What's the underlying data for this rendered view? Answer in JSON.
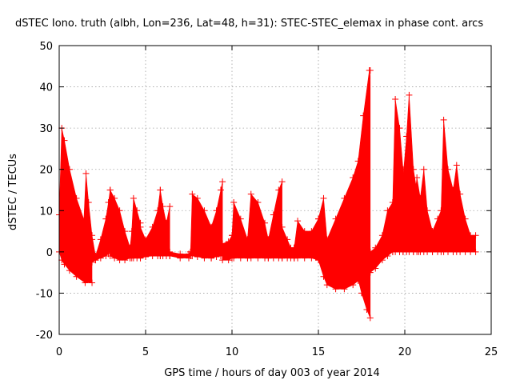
{
  "chart_data": {
    "type": "line",
    "title": "dSTEC Iono. truth (albh, Lon=236, Lat=48, h=31): STEC-STEC_elemax in phase cont. arcs",
    "xlabel": "GPS time / hours of day 003 of year 2014",
    "ylabel": "dSTEC  / TECUs",
    "xlim": [
      0,
      25
    ],
    "ylim": [
      -20,
      50
    ],
    "x_ticks": [
      0,
      5,
      10,
      15,
      20,
      25
    ],
    "y_ticks": [
      -20,
      -10,
      0,
      10,
      20,
      30,
      40,
      50
    ],
    "grid": true,
    "legend": "none",
    "marker": "plus",
    "series": [
      {
        "color": "#ff0000",
        "arcs": [
          {
            "x": [
              0.0,
              0.15,
              0.3,
              0.6,
              1.0,
              1.5,
              1.9
            ],
            "upper": [
              9,
              30,
              27,
              20,
              13,
              7,
              3
            ],
            "lower": [
              0,
              -2,
              -3,
              -4.5,
              -6,
              -7.5,
              -7.5
            ]
          },
          {
            "x": [
              1.4,
              1.55,
              1.7,
              1.9,
              2.1
            ],
            "upper": [
              5,
              19,
              12,
              4,
              -1
            ],
            "lower": [
              -3,
              -3,
              -3,
              -2.5,
              -2
            ]
          },
          {
            "x": [
              2.1,
              2.4,
              2.7,
              2.85,
              2.95
            ],
            "upper": [
              -1,
              3,
              8,
              12,
              15
            ],
            "lower": [
              -2,
              -1.5,
              -1,
              -0.5,
              0
            ]
          },
          {
            "x": [
              2.95,
              3.2,
              3.5,
              3.8,
              4.1
            ],
            "upper": [
              15,
              13,
              10,
              5,
              1
            ],
            "lower": [
              -1,
              -1.5,
              -2,
              -2,
              -1.5
            ]
          },
          {
            "x": [
              4.1,
              4.2,
              4.3,
              4.5,
              4.7
            ],
            "upper": [
              1,
              5,
              13,
              10,
              7
            ],
            "lower": [
              -1.5,
              -1.5,
              -1.5,
              -1.5,
              -1.5
            ]
          },
          {
            "x": [
              4.7,
              5.0,
              5.4,
              5.7,
              5.85
            ],
            "upper": [
              6,
              3,
              6,
              10,
              15
            ],
            "lower": [
              -1.5,
              -1.2,
              -1,
              -1,
              -1
            ]
          },
          {
            "x": [
              5.85,
              6.0,
              6.2,
              6.4
            ],
            "upper": [
              15,
              11,
              7,
              11
            ],
            "lower": [
              -1,
              -1,
              -1,
              -1
            ]
          },
          {
            "x": [
              6.4,
              7.0,
              7.5,
              7.6
            ],
            "upper": [
              0,
              -0.5,
              -0.5,
              0
            ],
            "lower": [
              -1,
              -1.5,
              -1.5,
              -1
            ]
          },
          {
            "x": [
              7.6,
              7.7,
              8.0,
              8.4,
              8.8
            ],
            "upper": [
              0,
              14,
              13,
              10,
              6
            ],
            "lower": [
              -1,
              -1,
              -1.2,
              -1.5,
              -1.5
            ]
          },
          {
            "x": [
              8.8,
              9.1,
              9.35,
              9.45
            ],
            "upper": [
              6,
              10,
              15,
              17
            ],
            "lower": [
              -1.5,
              -1.2,
              -1,
              -1
            ]
          },
          {
            "x": [
              9.45,
              9.8,
              10.0
            ],
            "upper": [
              2,
              2.5,
              4
            ],
            "lower": [
              -2,
              -2,
              -1.5
            ]
          },
          {
            "x": [
              10.0,
              10.1,
              10.5,
              10.9
            ],
            "upper": [
              4,
              12,
              8,
              3
            ],
            "lower": [
              -1.5,
              -1.5,
              -1.5,
              -1.5
            ]
          },
          {
            "x": [
              10.9,
              11.1,
              11.5,
              11.9,
              12.1
            ],
            "upper": [
              3,
              14,
              12,
              7,
              3
            ],
            "lower": [
              -1.5,
              -1.5,
              -1.5,
              -1.5,
              -1.5
            ]
          },
          {
            "x": [
              12.1,
              12.4,
              12.7,
              12.9
            ],
            "upper": [
              3,
              9,
              15,
              17
            ],
            "lower": [
              -1.5,
              -1.5,
              -1.5,
              -1.5
            ]
          },
          {
            "x": [
              12.9,
              13.2,
              13.4,
              13.6
            ],
            "upper": [
              6,
              3,
              1,
              1
            ],
            "lower": [
              -1.5,
              -1.5,
              -1.5,
              -1.5
            ]
          },
          {
            "x": [
              13.6,
              13.8,
              14.2,
              14.6,
              15.0
            ],
            "upper": [
              1,
              7.5,
              5,
              5,
              8
            ],
            "lower": [
              -1.5,
              -1.5,
              -1.5,
              -1.5,
              -2
            ]
          },
          {
            "x": [
              15.0,
              15.3,
              15.5,
              16.0,
              16.5,
              17.0,
              17.3,
              17.6,
              17.95,
              18.0
            ],
            "upper": [
              8,
              13,
              3,
              8,
              13,
              18,
              22,
              33,
              44,
              0
            ],
            "lower": [
              -2,
              -6,
              -8,
              -9,
              -9,
              -8,
              -7,
              -6,
              -5,
              -3
            ]
          },
          {
            "x": [
              16.4,
              16.8,
              17.2,
              17.5,
              17.8,
              18.0
            ],
            "upper": [
              5,
              11,
              17,
              22,
              30,
              44
            ],
            "lower": [
              -2,
              -3,
              -5,
              -10,
              -14,
              -16
            ]
          },
          {
            "x": [
              18.0,
              18.3,
              18.7,
              19.0,
              19.3
            ],
            "upper": [
              0,
              1,
              4,
              10,
              12
            ],
            "lower": [
              -5,
              -4,
              -2,
              -1,
              0
            ]
          },
          {
            "x": [
              19.3,
              19.45,
              19.7,
              19.9
            ],
            "upper": [
              12,
              37,
              30,
              20
            ],
            "lower": [
              0,
              0,
              0,
              0
            ]
          },
          {
            "x": [
              19.9,
              20.1,
              20.25,
              20.5,
              20.8
            ],
            "upper": [
              18,
              28,
              38,
              20,
              12
            ],
            "lower": [
              0,
              0,
              0,
              0,
              0
            ]
          },
          {
            "x": [
              20.5,
              20.7,
              20.9,
              21.1,
              21.3,
              21.6
            ],
            "upper": [
              10,
              18,
              13,
              20,
              10,
              5
            ],
            "lower": [
              0,
              0,
              0,
              0,
              0,
              0
            ]
          },
          {
            "x": [
              21.6,
              21.9,
              22.1,
              22.25,
              22.5,
              22.8
            ],
            "upper": [
              5,
              8,
              10,
              32,
              20,
              15
            ],
            "lower": [
              0,
              0,
              0,
              0,
              0,
              0
            ]
          },
          {
            "x": [
              22.8,
              23.0,
              23.2,
              23.5,
              23.8,
              24.1
            ],
            "upper": [
              15,
              21,
              14,
              8,
              4,
              4
            ],
            "lower": [
              0,
              0,
              0,
              0,
              0,
              0
            ]
          }
        ]
      }
    ]
  }
}
